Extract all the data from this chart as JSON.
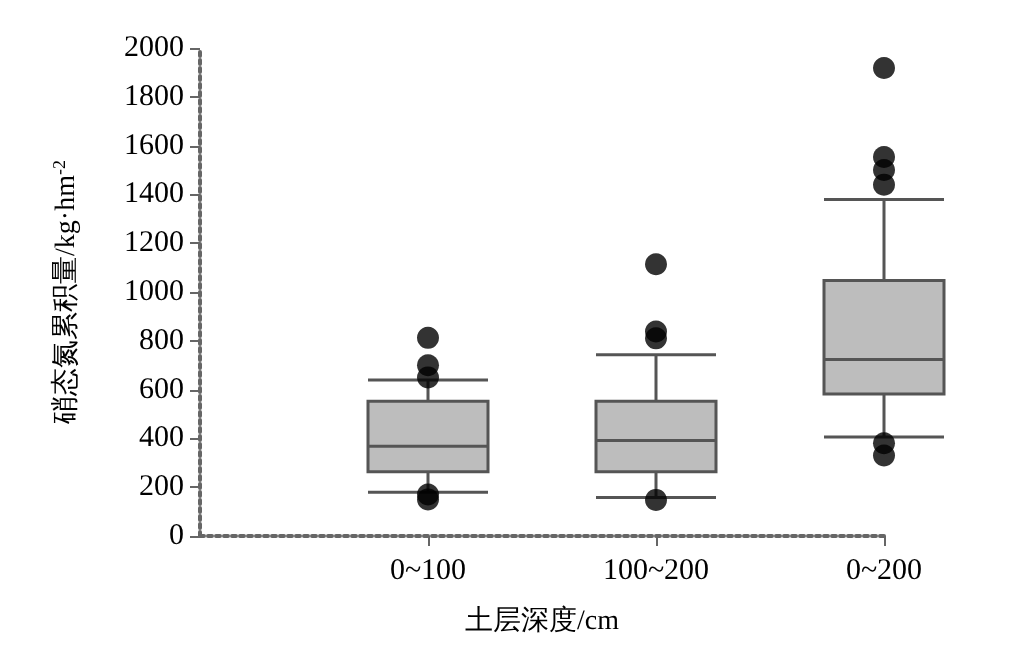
{
  "chart_data": {
    "type": "box",
    "xlabel": "土层深度/cm",
    "ylabel": "硝态氮累积量/kg·hm$^{-2}$",
    "categories": [
      "0~100",
      "100~200",
      "0~200"
    ],
    "ylim": [
      0,
      2000
    ],
    "yticks": [
      0,
      200,
      400,
      600,
      800,
      1000,
      1200,
      1400,
      1600,
      1800,
      2000
    ],
    "grid": false,
    "color": "#bdbdbd",
    "boxes": [
      {
        "low": 179,
        "q1": 263,
        "median": 368,
        "q3": 552,
        "high": 639,
        "outliers": [
          812,
          700,
          650,
          170,
          150
        ]
      },
      {
        "low": 158,
        "q1": 263,
        "median": 391,
        "q3": 552,
        "high": 743,
        "outliers": [
          1114,
          838,
          810,
          148
        ]
      },
      {
        "low": 406,
        "q1": 582,
        "median": 723,
        "q3": 1047,
        "high": 1379,
        "outliers": [
          1918,
          1553,
          1500,
          1440,
          380,
          330
        ]
      }
    ]
  }
}
